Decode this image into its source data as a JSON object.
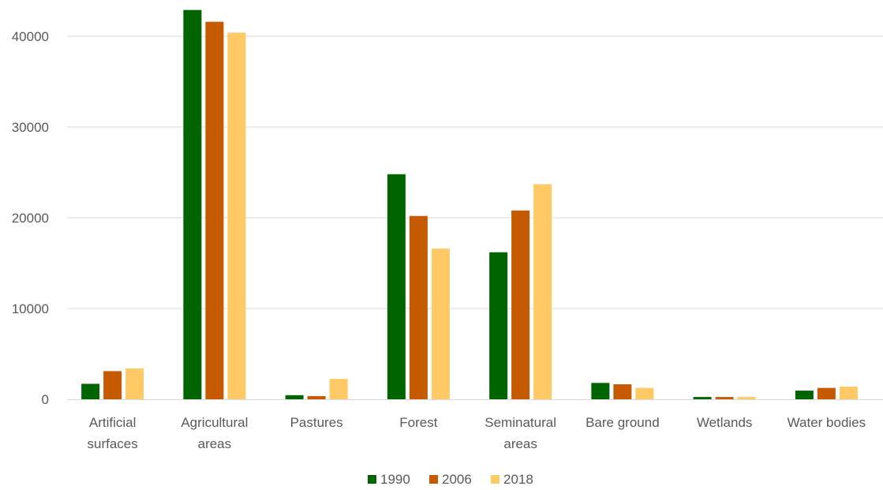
{
  "chart_data": {
    "type": "bar",
    "title": "",
    "xlabel": "",
    "ylabel": "",
    "ylim": [
      0,
      43000
    ],
    "yticks": [
      0,
      10000,
      20000,
      30000,
      40000
    ],
    "grid": true,
    "legend_position": "bottom",
    "categories": [
      [
        "Artificial",
        "surfaces"
      ],
      [
        "Agricultural",
        "areas"
      ],
      [
        "Pastures"
      ],
      [
        "Forest"
      ],
      [
        "Seminatural",
        "areas"
      ],
      [
        "Bare ground"
      ],
      [
        "Wetlands"
      ],
      [
        "Water bodies"
      ]
    ],
    "series": [
      {
        "name": "1990",
        "color": "#006400",
        "values": [
          1700,
          42900,
          450,
          24800,
          16200,
          1800,
          250,
          950
        ]
      },
      {
        "name": "2006",
        "color": "#C55A00",
        "values": [
          3100,
          41600,
          350,
          20200,
          20800,
          1650,
          250,
          1250
        ]
      },
      {
        "name": "2018",
        "color": "#FFC966",
        "values": [
          3400,
          40400,
          2250,
          16600,
          23700,
          1250,
          250,
          1400
        ]
      }
    ]
  }
}
